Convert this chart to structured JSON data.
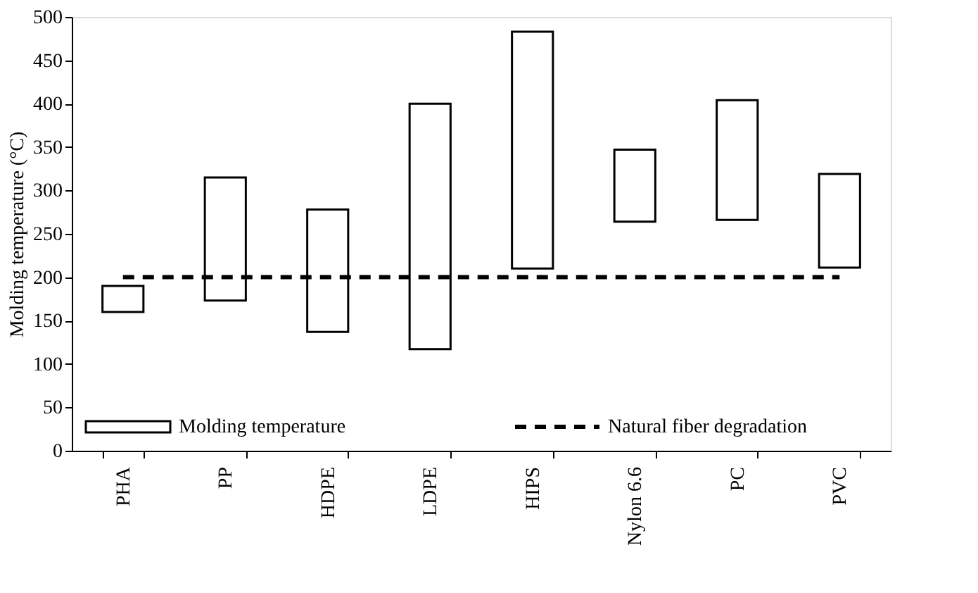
{
  "chart_data": {
    "type": "bar",
    "ylabel": "Molding temperature (°C)",
    "categories": [
      "PHA",
      "PP",
      "HDPE",
      "LDPE",
      "HIPS",
      "Nylon 6.6",
      "PC",
      "PVC"
    ],
    "series": [
      {
        "name": "Molding temperature",
        "color": "#ffffff",
        "base": [
          160,
          173,
          137,
          117,
          210,
          264,
          266,
          211
        ],
        "values": [
          30,
          142,
          141,
          283,
          273,
          83,
          138,
          108
        ]
      }
    ],
    "ylim": [
      0,
      500
    ],
    "yticks": [
      0,
      50,
      100,
      150,
      200,
      250,
      300,
      350,
      400,
      450,
      500
    ],
    "ref_lines": [
      {
        "axis": "y",
        "value": 200,
        "label": "Natural fiber degradation",
        "color": "#000000",
        "line_style": "dashed"
      }
    ],
    "grid": false,
    "legend": "bottom"
  }
}
